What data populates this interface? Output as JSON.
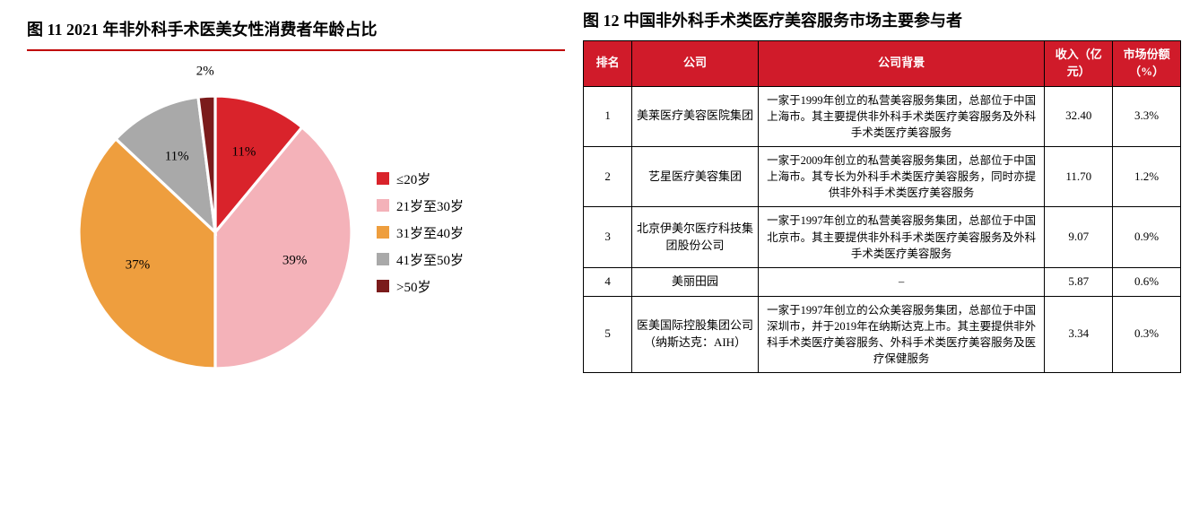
{
  "colors": {
    "accent_red": "#c00000",
    "table_header_bg": "#d01b2a",
    "text": "#000000",
    "background": "#ffffff"
  },
  "left": {
    "title": "图 11 2021 年非外科手术医美女性消费者年龄占比",
    "chart": {
      "type": "pie",
      "slices": [
        {
          "label": "≤20岁",
          "value": 11,
          "text": "11%",
          "color": "#d9232b"
        },
        {
          "label": "21岁至30岁",
          "value": 39,
          "text": "39%",
          "color": "#f4b2b9"
        },
        {
          "label": "31岁至40岁",
          "value": 37,
          "text": "37%",
          "color": "#ee9e3e"
        },
        {
          "label": "41岁至50岁",
          "value": 11,
          "text": "11%",
          "color": "#a9a9a9"
        },
        {
          "label": ">50岁",
          "value": 2,
          "text": "2%",
          "color": "#7b1b1b"
        }
      ],
      "start_angle_deg": -90,
      "label_fontsize": 15,
      "legend_fontsize": 15,
      "border_color": "#ffffff",
      "border_width": 2
    }
  },
  "right": {
    "title": "图 12 中国非外科手术类医疗美容服务市场主要参与者",
    "table": {
      "columns": [
        {
          "key": "rank",
          "label": "排名",
          "class": "col-rank"
        },
        {
          "key": "company",
          "label": "公司",
          "class": "col-co"
        },
        {
          "key": "bg",
          "label": "公司背景",
          "class": "col-bg"
        },
        {
          "key": "revenue",
          "label": "收入（亿元）",
          "class": "col-rev"
        },
        {
          "key": "share",
          "label": "市场份额（%）",
          "class": "col-shr"
        }
      ],
      "rows": [
        {
          "rank": "1",
          "company": "美莱医疗美容医院集团",
          "bg": "一家于1999年创立的私营美容服务集团，总部位于中国上海市。其主要提供非外科手术类医疗美容服务及外科手术类医疗美容服务",
          "revenue": "32.40",
          "share": "3.3%"
        },
        {
          "rank": "2",
          "company": "艺星医疗美容集团",
          "bg": "一家于2009年创立的私营美容服务集团，总部位于中国上海市。其专长为外科手术类医疗美容服务，同时亦提供非外科手术类医疗美容服务",
          "revenue": "11.70",
          "share": "1.2%"
        },
        {
          "rank": "3",
          "company": "北京伊美尔医疗科技集团股份公司",
          "bg": "一家于1997年创立的私营美容服务集团，总部位于中国北京市。其主要提供非外科手术类医疗美容服务及外科手术类医疗美容服务",
          "revenue": "9.07",
          "share": "0.9%"
        },
        {
          "rank": "4",
          "company": "美丽田园",
          "bg": "–",
          "revenue": "5.87",
          "share": "0.6%"
        },
        {
          "rank": "5",
          "company": "医美国际控股集团公司（纳斯达克：AIH）",
          "bg": "一家于1997年创立的公众美容服务集团，总部位于中国深圳市，并于2019年在纳斯达克上市。其主要提供非外科手术类医疗美容服务、外科手术类医疗美容服务及医疗保健服务",
          "revenue": "3.34",
          "share": "0.3%"
        }
      ]
    }
  }
}
